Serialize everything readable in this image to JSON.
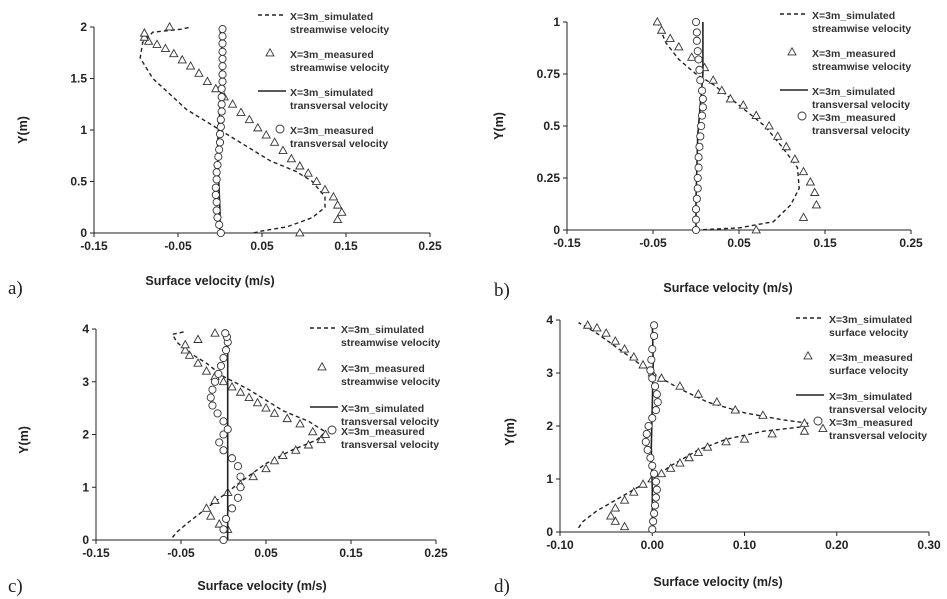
{
  "chart_data": [
    {
      "panel_label": "a)",
      "type": "line",
      "xlabel": "Surface velocity (m/s)",
      "ylabel": "Y(m)",
      "xlim": [
        -0.15,
        0.25
      ],
      "ylim": [
        0,
        2
      ],
      "x_ticks": [
        "-0.15",
        "-0.05",
        "0.05",
        "0.15",
        "0.25"
      ],
      "y_ticks": [
        "0",
        "0.5",
        "1",
        "1.5",
        "2"
      ],
      "legend": {
        "placement": "top-right",
        "entries": [
          [
            "X=3m_simulated",
            "streamwise velocity"
          ],
          [
            "X=3m_measured",
            "streamwise velocity"
          ],
          [
            "X=3m_simulated",
            "transversal velocity"
          ],
          [
            "X=3m_measured",
            "transversal velocity"
          ]
        ]
      },
      "series": [
        {
          "x": [
            0.04,
            0.05,
            0.08,
            0.11,
            0.125,
            0.125,
            0.11,
            0.09,
            0.06,
            0.04,
            0.02,
            0.0,
            -0.02,
            -0.04,
            -0.06,
            -0.08,
            -0.095,
            -0.092,
            -0.08,
            -0.045,
            -0.035
          ],
          "y": [
            0.0,
            0.02,
            0.06,
            0.15,
            0.25,
            0.35,
            0.5,
            0.6,
            0.7,
            0.8,
            0.9,
            1.0,
            1.1,
            1.2,
            1.35,
            1.5,
            1.7,
            1.85,
            1.95,
            1.98,
            2.0
          ]
        },
        {
          "x": [
            0.095,
            0.14,
            0.145,
            0.14,
            0.135,
            0.125,
            0.115,
            0.105,
            0.095,
            0.085,
            0.075,
            0.065,
            0.055,
            0.045,
            0.035,
            0.025,
            0.015,
            0.005,
            -0.005,
            -0.015,
            -0.025,
            -0.035,
            -0.045,
            -0.055,
            -0.065,
            -0.075,
            -0.085,
            -0.09,
            -0.09,
            -0.06
          ],
          "y": [
            0.0,
            0.13,
            0.2,
            0.27,
            0.35,
            0.42,
            0.5,
            0.58,
            0.65,
            0.72,
            0.8,
            0.88,
            0.95,
            1.02,
            1.1,
            1.17,
            1.25,
            1.32,
            1.4,
            1.47,
            1.55,
            1.62,
            1.68,
            1.74,
            1.79,
            1.83,
            1.86,
            1.9,
            1.94,
            2.0
          ]
        },
        {
          "x": [
            0.0,
            0.0,
            -0.001,
            -0.002,
            -0.003,
            -0.002,
            0.0,
            0.001,
            0.002,
            0.002,
            0.001,
            0.0
          ],
          "y": [
            0.0,
            0.2,
            0.4,
            0.6,
            0.8,
            1.0,
            1.2,
            1.4,
            1.6,
            1.8,
            1.9,
            2.0
          ]
        },
        {
          "x": [
            0.001,
            -0.001,
            -0.003,
            -0.004,
            -0.004,
            -0.005,
            -0.005,
            -0.004,
            -0.004,
            -0.003,
            -0.002,
            -0.001,
            0.0,
            0.0,
            0.001,
            0.001,
            0.002,
            0.002,
            0.002,
            0.002,
            0.003,
            0.003,
            0.003,
            0.003,
            0.003,
            0.003,
            0.003,
            0.003
          ],
          "y": [
            0.0,
            0.08,
            0.15,
            0.22,
            0.3,
            0.37,
            0.44,
            0.52,
            0.59,
            0.66,
            0.74,
            0.81,
            0.88,
            0.96,
            1.03,
            1.1,
            1.18,
            1.25,
            1.32,
            1.4,
            1.47,
            1.54,
            1.62,
            1.69,
            1.76,
            1.84,
            1.91,
            1.98
          ]
        }
      ]
    },
    {
      "panel_label": "b)",
      "type": "line",
      "xlabel": "Surface velocity (m/s)",
      "ylabel": "Y(m)",
      "xlim": [
        -0.15,
        0.25
      ],
      "ylim": [
        0,
        1
      ],
      "x_ticks": [
        "-0.15",
        "-0.05",
        "0.05",
        "0.15",
        "0.25"
      ],
      "y_ticks": [
        "0",
        "0.25",
        "0.5",
        "0.75",
        "1"
      ],
      "legend": {
        "placement": "top-right",
        "entries": [
          [
            "X=3m_simulated",
            "streamwise velocity"
          ],
          [
            "X=3m_measured",
            "streamwise velocity"
          ],
          [
            "X=3m_simulated",
            "transversal velocity"
          ],
          [
            "X=3m_measured",
            "transversal velocity"
          ]
        ]
      },
      "series": [
        {
          "x": [
            0.0,
            0.05,
            0.09,
            0.11,
            0.12,
            0.118,
            0.1,
            0.08,
            0.05,
            0.02,
            0.0,
            -0.02,
            -0.035,
            -0.045
          ],
          "y": [
            0.0,
            0.01,
            0.04,
            0.12,
            0.2,
            0.3,
            0.4,
            0.5,
            0.6,
            0.7,
            0.75,
            0.82,
            0.9,
            1.0
          ]
        },
        {
          "x": [
            0.07,
            0.125,
            0.14,
            0.138,
            0.133,
            0.125,
            0.115,
            0.105,
            0.095,
            0.085,
            0.07,
            0.055,
            0.04,
            0.03,
            0.02,
            0.01,
            -0.005,
            -0.02,
            -0.03,
            -0.04,
            -0.045
          ],
          "y": [
            0.0,
            0.06,
            0.12,
            0.18,
            0.23,
            0.28,
            0.34,
            0.4,
            0.45,
            0.5,
            0.55,
            0.6,
            0.63,
            0.67,
            0.72,
            0.78,
            0.83,
            0.88,
            0.92,
            0.96,
            1.0
          ]
        },
        {
          "x": [
            0.0,
            0.0,
            0.001,
            0.002,
            0.004,
            0.006,
            0.008,
            0.008,
            0.008
          ],
          "y": [
            0.0,
            0.15,
            0.3,
            0.45,
            0.55,
            0.65,
            0.75,
            0.9,
            1.0
          ]
        },
        {
          "x": [
            0.0,
            0.0,
            0.0,
            0.001,
            0.002,
            0.002,
            0.003,
            0.003,
            0.004,
            0.005,
            0.006,
            0.007,
            0.008,
            0.008,
            0.007,
            0.005,
            0.004,
            0.003,
            0.002,
            0.001,
            0.001,
            0.0
          ],
          "y": [
            0.0,
            0.05,
            0.1,
            0.15,
            0.2,
            0.25,
            0.3,
            0.35,
            0.4,
            0.45,
            0.5,
            0.55,
            0.59,
            0.63,
            0.67,
            0.72,
            0.77,
            0.82,
            0.86,
            0.91,
            0.95,
            1.0
          ]
        }
      ]
    },
    {
      "panel_label": "c)",
      "type": "line",
      "xlabel": "Surface velocity (m/s)",
      "ylabel": "Y(m)",
      "xlim": [
        -0.15,
        0.25
      ],
      "ylim": [
        0,
        4
      ],
      "x_ticks": [
        "-0.15",
        "-0.05",
        "0.05",
        "0.15",
        "0.25"
      ],
      "y_ticks": [
        "0",
        "1",
        "2",
        "3",
        "4"
      ],
      "legend": {
        "placement": "top-right",
        "entries": [
          [
            "X=3m_simulated",
            "streamwise velocity"
          ],
          [
            "X=3m_measured",
            "streamwise velocity"
          ],
          [
            "X=3m_simulated",
            "transversal velocity"
          ],
          [
            "X=3m_measured",
            "transversal velocity"
          ]
        ]
      },
      "series": [
        {
          "x": [
            -0.06,
            -0.055,
            -0.04,
            -0.02,
            0.0,
            0.02,
            0.05,
            0.08,
            0.11,
            0.12,
            0.1,
            0.07,
            0.05,
            0.03,
            0.0,
            -0.02,
            -0.04,
            -0.055,
            -0.06,
            -0.045
          ],
          "y": [
            0.05,
            0.15,
            0.35,
            0.6,
            0.85,
            1.1,
            1.45,
            1.7,
            1.9,
            2.05,
            2.25,
            2.45,
            2.65,
            2.85,
            3.1,
            3.35,
            3.55,
            3.75,
            3.9,
            3.95
          ]
        },
        {
          "x": [
            0.005,
            -0.005,
            -0.015,
            -0.02,
            -0.01,
            0.005,
            0.02,
            0.035,
            0.05,
            0.06,
            0.07,
            0.085,
            0.1,
            0.115,
            0.12,
            0.105,
            0.09,
            0.075,
            0.06,
            0.05,
            0.04,
            0.03,
            0.02,
            0.01,
            0.0,
            -0.01,
            -0.02,
            -0.03,
            -0.04,
            -0.045,
            -0.045,
            -0.03,
            -0.01
          ],
          "y": [
            0.2,
            0.3,
            0.45,
            0.6,
            0.75,
            0.9,
            1.05,
            1.2,
            1.35,
            1.5,
            1.6,
            1.7,
            1.8,
            1.9,
            2.0,
            2.05,
            2.2,
            2.3,
            2.4,
            2.5,
            2.6,
            2.7,
            2.8,
            2.9,
            3.0,
            3.1,
            3.2,
            3.35,
            3.5,
            3.6,
            3.7,
            3.8,
            3.92
          ]
        },
        {
          "x": [
            0.005,
            0.005,
            0.005,
            0.005,
            0.005
          ],
          "y": [
            0.0,
            1.0,
            2.0,
            3.0,
            3.95
          ]
        },
        {
          "x": [
            0.0,
            0.0,
            0.003,
            0.01,
            0.017,
            0.02,
            0.02,
            0.017,
            0.01,
            0.0,
            -0.005,
            0.0,
            0.005,
            0.0,
            -0.007,
            -0.013,
            -0.015,
            -0.013,
            -0.01,
            -0.006,
            -0.003,
            0.0,
            0.003,
            0.005,
            0.004,
            0.002
          ],
          "y": [
            0.0,
            0.2,
            0.4,
            0.6,
            0.8,
            1.0,
            1.2,
            1.4,
            1.55,
            1.7,
            1.85,
            2.0,
            2.1,
            2.25,
            2.4,
            2.55,
            2.7,
            2.85,
            3.0,
            3.15,
            3.3,
            3.45,
            3.6,
            3.75,
            3.85,
            3.92
          ]
        }
      ]
    },
    {
      "panel_label": "d)",
      "type": "line",
      "xlabel": "Surface velocity (m/s)",
      "ylabel": "Y(m)",
      "xlim": [
        -0.1,
        0.3
      ],
      "ylim": [
        0,
        4
      ],
      "x_ticks": [
        "-0.10",
        "0.00",
        "0.10",
        "0.20",
        "0.30"
      ],
      "y_ticks": [
        "0",
        "1",
        "2",
        "3",
        "4"
      ],
      "legend": {
        "placement": "top-right",
        "entries": [
          [
            "X=3m_simulated",
            "surface velocity"
          ],
          [
            "X=3m_measured",
            "surface velocity"
          ],
          [
            "X=3m_simulated",
            "transversal velocity"
          ],
          [
            "X=3m_measured",
            "transversal velocity"
          ]
        ]
      },
      "series": [
        {
          "x": [
            -0.08,
            -0.075,
            -0.06,
            -0.04,
            -0.02,
            0.0,
            0.02,
            0.05,
            0.08,
            0.12,
            0.16,
            0.17,
            0.14,
            0.1,
            0.06,
            0.03,
            0.0,
            -0.02,
            -0.04,
            -0.06,
            -0.08
          ],
          "y": [
            0.08,
            0.2,
            0.4,
            0.6,
            0.8,
            1.0,
            1.25,
            1.55,
            1.75,
            1.9,
            1.98,
            2.05,
            2.12,
            2.25,
            2.45,
            2.7,
            3.0,
            3.25,
            3.5,
            3.75,
            3.95
          ]
        },
        {
          "x": [
            -0.03,
            -0.04,
            -0.045,
            -0.04,
            -0.03,
            -0.02,
            -0.01,
            0.0,
            0.01,
            0.02,
            0.03,
            0.04,
            0.05,
            0.06,
            0.08,
            0.1,
            0.13,
            0.165,
            0.185,
            0.165,
            0.12,
            0.09,
            0.07,
            0.05,
            0.03,
            0.01,
            0.0,
            -0.01,
            -0.02,
            -0.03,
            -0.04,
            -0.05,
            -0.06,
            -0.07
          ],
          "y": [
            0.1,
            0.2,
            0.3,
            0.45,
            0.6,
            0.75,
            0.9,
            1.0,
            1.1,
            1.2,
            1.3,
            1.4,
            1.5,
            1.6,
            1.7,
            1.75,
            1.85,
            1.9,
            1.95,
            2.05,
            2.2,
            2.3,
            2.45,
            2.6,
            2.75,
            2.9,
            3.0,
            3.15,
            3.3,
            3.45,
            3.6,
            3.75,
            3.85,
            3.9
          ]
        },
        {
          "x": [
            0.0,
            0.0,
            -0.001,
            0.0,
            0.001,
            0.0
          ],
          "y": [
            0.0,
            0.8,
            1.6,
            2.4,
            3.2,
            3.95
          ]
        },
        {
          "x": [
            0.0,
            0.001,
            0.002,
            0.003,
            0.004,
            0.005,
            0.004,
            0.002,
            0.0,
            -0.002,
            -0.005,
            -0.007,
            -0.006,
            -0.004,
            0.0,
            0.004,
            0.006,
            0.005,
            0.003,
            0.0,
            -0.002,
            -0.001,
            0.0,
            0.002,
            0.002
          ],
          "y": [
            0.05,
            0.2,
            0.35,
            0.5,
            0.65,
            0.8,
            0.95,
            1.1,
            1.25,
            1.4,
            1.55,
            1.7,
            1.85,
            2.0,
            2.15,
            2.3,
            2.45,
            2.6,
            2.75,
            2.9,
            3.05,
            3.25,
            3.45,
            3.7,
            3.9
          ]
        }
      ]
    }
  ]
}
